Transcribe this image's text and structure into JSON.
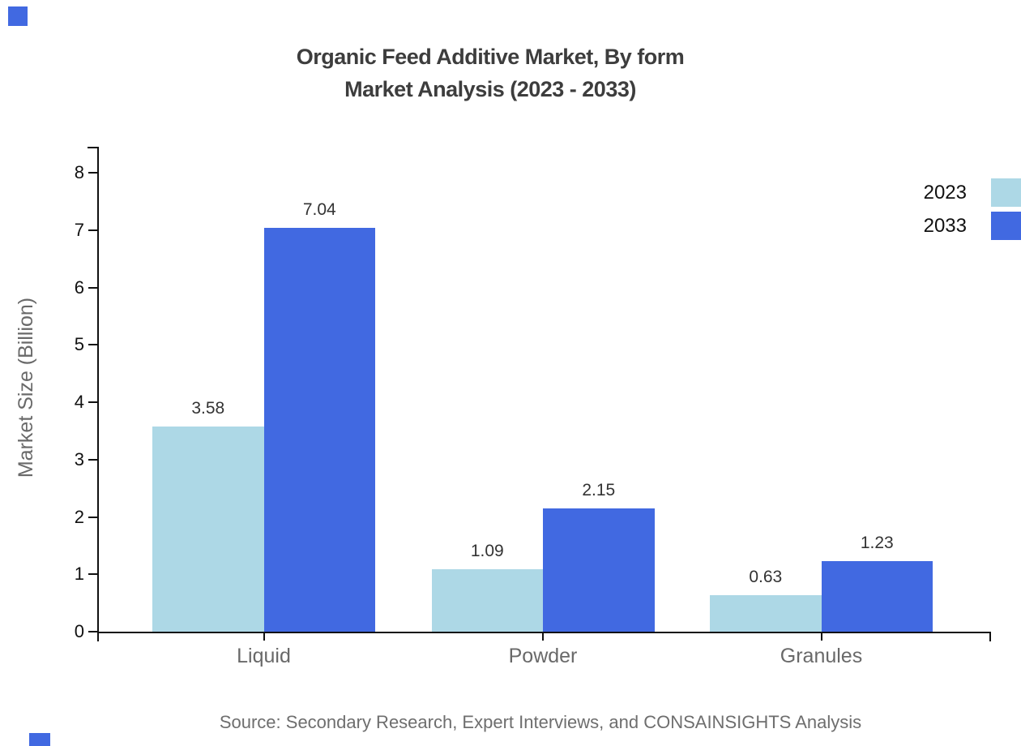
{
  "title": {
    "line1": "Organic Feed Additive Market, By form",
    "line2": "Market Analysis (2023 - 2033)"
  },
  "source_note": "Source: Secondary Research, Expert Interviews, and CONSAINSIGHTS Analysis",
  "colors": {
    "accent_light": "#ADD8E6",
    "accent_primary": "#4169E1",
    "axis": "#111111",
    "title_text": "#3d3d3d",
    "muted_text": "#696969",
    "value_text": "#333333"
  },
  "chart_data": {
    "type": "bar",
    "title": "Organic Feed Additive Market, By form Market Analysis (2023 - 2033)",
    "categories": [
      "Liquid",
      "Powder",
      "Granules"
    ],
    "series": [
      {
        "name": "2023",
        "color": "#ADD8E6",
        "values": [
          3.58,
          1.09,
          0.63
        ]
      },
      {
        "name": "2033",
        "color": "#4169E1",
        "values": [
          7.04,
          2.15,
          1.23
        ]
      }
    ],
    "xlabel": "",
    "ylabel": "Market Size (Billion)",
    "ylim": [
      0,
      8
    ],
    "y_ticks": [
      0,
      1,
      2,
      3,
      4,
      5,
      6,
      7,
      8
    ],
    "grid": false,
    "legend_position": "top-right",
    "value_label_format": "2-decimals"
  }
}
